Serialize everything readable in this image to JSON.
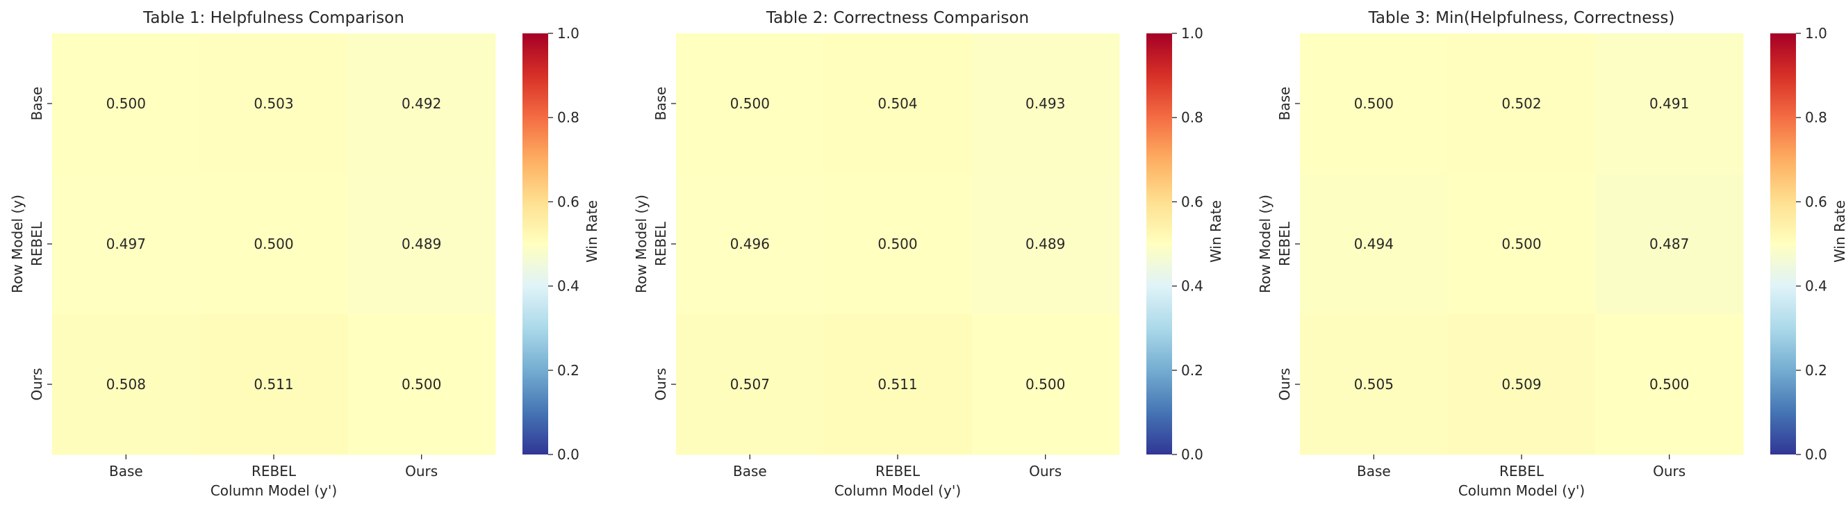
{
  "colorbar": {
    "label": "Win Rate",
    "ticks": [
      "0.0",
      "0.2",
      "0.4",
      "0.6",
      "0.8",
      "1.0"
    ],
    "vmin": 0.0,
    "vmax": 1.0,
    "colormap": "RdYlBu_r",
    "colormap_stops": [
      "#313695",
      "#4575b4",
      "#74add1",
      "#abd9e9",
      "#e0f3f8",
      "#ffffbf",
      "#fee090",
      "#fdae61",
      "#f46d43",
      "#d73027",
      "#a50026"
    ]
  },
  "chart_data": [
    {
      "type": "heatmap",
      "title": "Table 1: Helpfulness Comparison",
      "xlabel": "Column Model (y')",
      "ylabel": "Row Model (y)",
      "x_categories": [
        "Base",
        "REBEL",
        "Ours"
      ],
      "y_categories": [
        "Base",
        "REBEL",
        "Ours"
      ],
      "values": [
        [
          0.5,
          0.503,
          0.492
        ],
        [
          0.497,
          0.5,
          0.489
        ],
        [
          0.508,
          0.511,
          0.5
        ]
      ],
      "cell_labels": [
        [
          "0.500",
          "0.503",
          "0.492"
        ],
        [
          "0.497",
          "0.500",
          "0.489"
        ],
        [
          "0.508",
          "0.511",
          "0.500"
        ]
      ],
      "vmin": 0.0,
      "vmax": 1.0
    },
    {
      "type": "heatmap",
      "title": "Table 2: Correctness Comparison",
      "xlabel": "Column Model (y')",
      "ylabel": "Row Model (y)",
      "x_categories": [
        "Base",
        "REBEL",
        "Ours"
      ],
      "y_categories": [
        "Base",
        "REBEL",
        "Ours"
      ],
      "values": [
        [
          0.5,
          0.504,
          0.493
        ],
        [
          0.496,
          0.5,
          0.489
        ],
        [
          0.507,
          0.511,
          0.5
        ]
      ],
      "cell_labels": [
        [
          "0.500",
          "0.504",
          "0.493"
        ],
        [
          "0.496",
          "0.500",
          "0.489"
        ],
        [
          "0.507",
          "0.511",
          "0.500"
        ]
      ],
      "vmin": 0.0,
      "vmax": 1.0
    },
    {
      "type": "heatmap",
      "title": "Table 3: Min(Helpfulness, Correctness)",
      "xlabel": "Column Model (y')",
      "ylabel": "Row Model (y)",
      "x_categories": [
        "Base",
        "REBEL",
        "Ours"
      ],
      "y_categories": [
        "Base",
        "REBEL",
        "Ours"
      ],
      "values": [
        [
          0.5,
          0.502,
          0.491
        ],
        [
          0.494,
          0.5,
          0.487
        ],
        [
          0.505,
          0.509,
          0.5
        ]
      ],
      "cell_labels": [
        [
          "0.500",
          "0.502",
          "0.491"
        ],
        [
          "0.494",
          "0.500",
          "0.487"
        ],
        [
          "0.505",
          "0.509",
          "0.500"
        ]
      ],
      "vmin": 0.0,
      "vmax": 1.0
    }
  ]
}
